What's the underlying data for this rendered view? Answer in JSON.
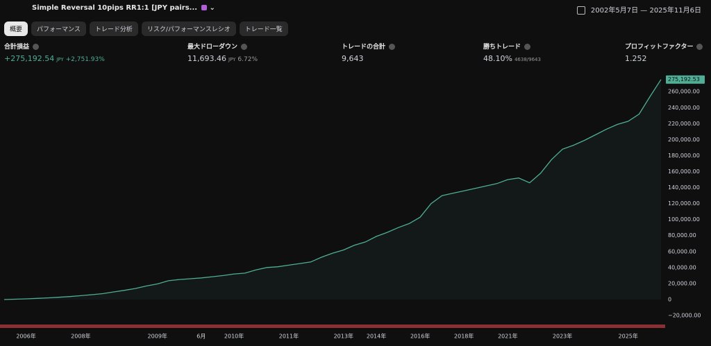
{
  "header": {
    "strategy": "Simple Reversal 10pips RR1:1 [JPY pairs...",
    "date_range": "2002年5月7日 — 2025年11月6日"
  },
  "tabs": [
    "概要",
    "パフォーマンス",
    "トレード分析",
    "リスク/パフォーマンスレシオ",
    "トレード一覧"
  ],
  "stats": [
    {
      "label": "合計損益",
      "value": "+275,192.54",
      "unit": "JPY",
      "extra": "+2,751.93%"
    },
    {
      "label": "最大ドローダウン",
      "value": "11,693.46",
      "unit": "JPY",
      "extra": "6.72%"
    },
    {
      "label": "トレードの合計",
      "value": "9,643"
    },
    {
      "label": "勝ちトレード",
      "value": "48.10%",
      "extra": "4638/9643"
    },
    {
      "label": "プロフィットファクター",
      "value": "1.252"
    }
  ],
  "chart_data": {
    "type": "line",
    "color": "#4fae95",
    "grid": false,
    "categories": [
      null,
      null,
      "2006年",
      null,
      null,
      null,
      null,
      "2008年",
      null,
      null,
      null,
      null,
      null,
      null,
      "2009年",
      null,
      null,
      null,
      "6月",
      null,
      null,
      "2010年",
      null,
      null,
      null,
      null,
      "2011年",
      null,
      null,
      null,
      null,
      "2013年",
      null,
      null,
      "2014年",
      null,
      null,
      null,
      "2016年",
      null,
      null,
      null,
      "2018年",
      null,
      null,
      null,
      "2021年",
      null,
      null,
      null,
      null,
      "2023年",
      null,
      null,
      null,
      null,
      null,
      "2025年",
      null,
      null,
      null
    ],
    "values": [
      0,
      400,
      800,
      1400,
      2000,
      2800,
      3700,
      4800,
      6000,
      7300,
      9500,
      11500,
      13800,
      17000,
      19500,
      23500,
      25000,
      26000,
      27000,
      28500,
      30000,
      32000,
      33000,
      37000,
      40000,
      41000,
      43000,
      45000,
      47000,
      53000,
      58000,
      62000,
      68000,
      72000,
      79000,
      84000,
      90000,
      95000,
      103000,
      120000,
      130000,
      133000,
      136000,
      139000,
      142000,
      145000,
      150000,
      152000,
      146000,
      158000,
      175000,
      188000,
      193000,
      199000,
      206000,
      213000,
      219000,
      223000,
      232000,
      254000,
      275192.53
    ],
    "last_label": "275,192.53",
    "ylim": [
      -33000,
      281000
    ],
    "yticks": [
      {
        "value": -20000,
        "label": "−20,000.00"
      },
      0,
      {
        "value": 20000,
        "label": "20,000.00"
      },
      {
        "value": 40000,
        "label": "40,000.00"
      },
      {
        "value": 60000,
        "label": "60,000.00"
      },
      {
        "value": 80000,
        "label": "80,000.00"
      },
      {
        "value": 100000,
        "label": "100,000.00"
      },
      {
        "value": 120000,
        "label": "120,000.00"
      },
      {
        "value": 140000,
        "label": "140,000.00"
      },
      {
        "value": 160000,
        "label": "160,000.00"
      },
      {
        "value": 180000,
        "label": "180,000.00"
      },
      {
        "value": 200000,
        "label": "200,000.00"
      },
      {
        "value": 220000,
        "label": "220,000.00"
      },
      {
        "value": 240000,
        "label": "240,000.00"
      },
      {
        "value": 260000,
        "label": "260,000.00"
      }
    ]
  }
}
